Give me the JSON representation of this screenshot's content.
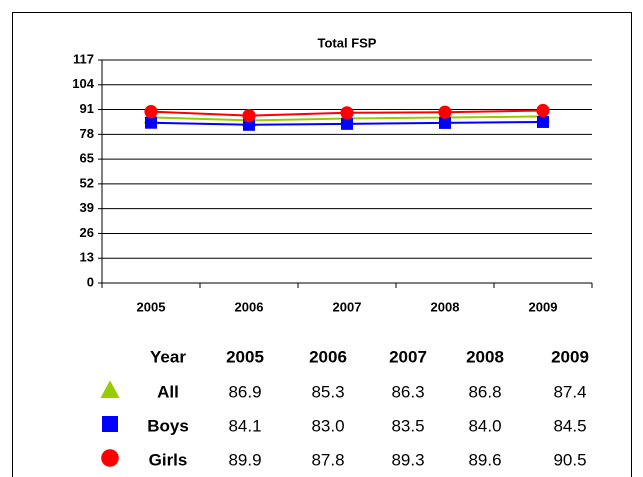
{
  "chart_data": {
    "type": "line",
    "title": "Total FSP",
    "categories": [
      "2005",
      "2006",
      "2007",
      "2008",
      "2009"
    ],
    "ylim": [
      0,
      117
    ],
    "yticks": [
      0,
      13,
      26,
      39,
      52,
      65,
      78,
      91,
      104,
      117
    ],
    "grid": true,
    "table_header": "Year",
    "series": [
      {
        "name": "All",
        "color": "#99cc00",
        "marker": "triangle",
        "values": [
          86.9,
          85.3,
          86.3,
          86.8,
          87.4
        ],
        "value_labels": [
          "86.9",
          "85.3",
          "86.3",
          "86.8",
          "87.4"
        ]
      },
      {
        "name": "Boys",
        "color": "#0000ff",
        "marker": "square",
        "values": [
          84.1,
          83.0,
          83.5,
          84.0,
          84.5
        ],
        "value_labels": [
          "84.1",
          "83.0",
          "83.5",
          "84.0",
          "84.5"
        ]
      },
      {
        "name": "Girls",
        "color": "#ff0000",
        "marker": "circle",
        "values": [
          89.9,
          87.8,
          89.3,
          89.6,
          90.5
        ],
        "value_labels": [
          "89.9",
          "87.8",
          "89.3",
          "89.6",
          "90.5"
        ]
      }
    ]
  }
}
